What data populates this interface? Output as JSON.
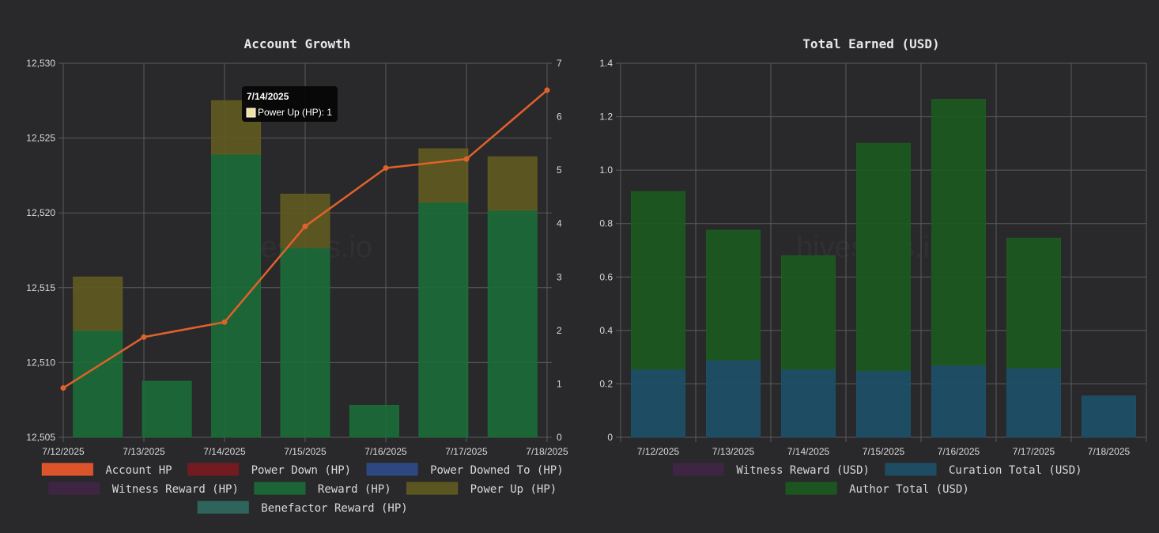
{
  "watermark": "hivestats.io",
  "colors": {
    "account_hp": "#f0582c",
    "power_down": "#7a1a1f",
    "power_downed_to": "#2e4b8a",
    "witness": "#3f2546",
    "reward": "#1b6b38",
    "power_up": "#615a20",
    "benefactor": "#2f6a62",
    "curation": "#1d5068",
    "author": "#1c5a1f",
    "line": "#e0622a"
  },
  "tooltip": {
    "title": "7/14/2025",
    "body": "Power Up (HP): 1",
    "swatch_color": "#f3e3a0"
  },
  "chart_data": [
    {
      "type": "bar",
      "title": "Account Growth",
      "categories": [
        "7/12/2025",
        "7/13/2025",
        "7/14/2025",
        "7/15/2025",
        "7/16/2025",
        "7/17/2025",
        "7/18/2025"
      ],
      "y_left": {
        "min": 12505,
        "max": 12530,
        "ticks": [
          "12,505",
          "12,510",
          "12,515",
          "12,520",
          "12,525",
          "12,530"
        ],
        "tick_values": [
          12505,
          12510,
          12515,
          12520,
          12525,
          12530
        ]
      },
      "y_right": {
        "min": 0,
        "max": 7,
        "ticks": [
          "0",
          "1",
          "2",
          "3",
          "4",
          "5",
          "6",
          "7"
        ],
        "tick_values": [
          0,
          1,
          2,
          3,
          4,
          5,
          6,
          7
        ]
      },
      "stacked_bars": [
        {
          "name": "Reward (HP)",
          "values": [
            2.0,
            1.05,
            5.3,
            3.55,
            0.6,
            4.4,
            4.25
          ]
        },
        {
          "name": "Power Up (HP)",
          "values": [
            1.0,
            0,
            1.0,
            1.0,
            0,
            1.0,
            1.0
          ]
        }
      ],
      "line": {
        "name": "Account HP",
        "values": [
          12508.3,
          12511.7,
          12512.7,
          12519.1,
          12523.0,
          12523.6,
          12528.2
        ]
      },
      "legend": [
        "Account HP",
        "Power Down (HP)",
        "Power Downed To (HP)",
        "Witness Reward (HP)",
        "Reward (HP)",
        "Power Up (HP)",
        "Benefactor Reward (HP)"
      ],
      "grid": true,
      "legend_position": "bottom"
    },
    {
      "type": "bar",
      "title": "Total Earned (USD)",
      "categories": [
        "7/12/2025",
        "7/13/2025",
        "7/14/2025",
        "7/15/2025",
        "7/16/2025",
        "7/17/2025",
        "7/18/2025"
      ],
      "y": {
        "min": 0,
        "max": 1.4,
        "ticks": [
          "0",
          "0.2",
          "0.4",
          "0.6",
          "0.8",
          "1.0",
          "1.2",
          "1.4"
        ],
        "tick_values": [
          0,
          0.2,
          0.4,
          0.6,
          0.8,
          1.0,
          1.2,
          1.4
        ]
      },
      "stacked_bars": [
        {
          "name": "Curation Total (USD)",
          "values": [
            0.255,
            0.29,
            0.255,
            0.25,
            0.27,
            0.26,
            0.155
          ]
        },
        {
          "name": "Author Total (USD)",
          "values": [
            0.665,
            0.485,
            0.425,
            0.85,
            0.995,
            0.485,
            0
          ]
        }
      ],
      "legend": [
        "Witness Reward (USD)",
        "Curation Total (USD)",
        "Author Total (USD)"
      ],
      "grid": true,
      "legend_position": "bottom"
    }
  ]
}
